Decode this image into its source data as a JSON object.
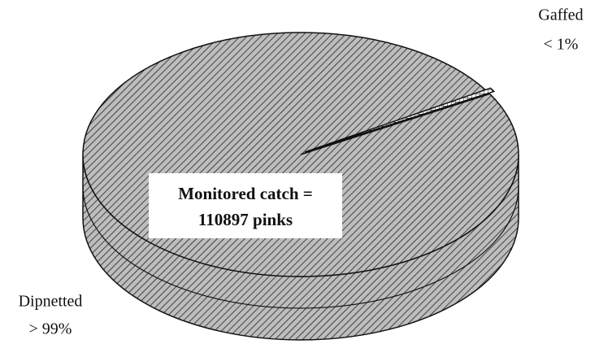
{
  "chart_data": {
    "type": "pie",
    "categories": [
      "Dipnetted",
      "Gaffed"
    ],
    "values": [
      99.5,
      0.5
    ],
    "value_labels": [
      "> 99%",
      "< 1%"
    ],
    "annotations": [
      "Monitored catch =",
      "110897 pinks"
    ]
  }
}
